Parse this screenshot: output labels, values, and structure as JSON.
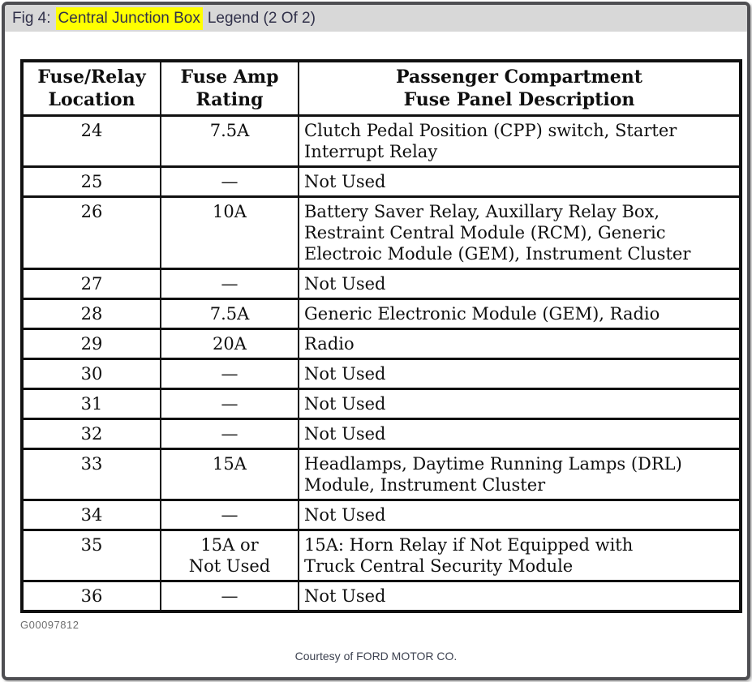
{
  "header": {
    "prefix": "Fig 4:",
    "highlight": "Central Junction Box",
    "suffix": "Legend (2 Of 2)"
  },
  "table": {
    "columns": [
      "Fuse/Relay\nLocation",
      "Fuse Amp\nRating",
      "Passenger Compartment\nFuse Panel Description"
    ],
    "rows": [
      {
        "location": "24",
        "rating": "7.5A",
        "description": "Clutch Pedal Position (CPP) switch, Starter\nInterrupt Relay"
      },
      {
        "location": "25",
        "rating": "—",
        "description": "Not Used"
      },
      {
        "location": "26",
        "rating": "10A",
        "description": "Battery Saver Relay, Auxillary Relay Box,\nRestraint Central Module (RCM), Generic\nElectroic Module (GEM), Instrument Cluster"
      },
      {
        "location": "27",
        "rating": "—",
        "description": "Not Used"
      },
      {
        "location": "28",
        "rating": "7.5A",
        "description": "Generic Electronic Module (GEM), Radio"
      },
      {
        "location": "29",
        "rating": "20A",
        "description": "Radio"
      },
      {
        "location": "30",
        "rating": "—",
        "description": "Not Used"
      },
      {
        "location": "31",
        "rating": "—",
        "description": "Not Used"
      },
      {
        "location": "32",
        "rating": "—",
        "description": "Not Used"
      },
      {
        "location": "33",
        "rating": "15A",
        "description": "Headlamps, Daytime Running Lamps (DRL)\nModule, Instrument Cluster"
      },
      {
        "location": "34",
        "rating": "—",
        "description": "Not Used"
      },
      {
        "location": "35",
        "rating": "15A or\nNot Used",
        "description": "15A: Horn Relay if Not Equipped with\nTruck Central Security Module"
      },
      {
        "location": "36",
        "rating": "—",
        "description": "Not Used"
      }
    ]
  },
  "footer": {
    "graphic_id": "G00097812",
    "courtesy": "Courtesy of FORD MOTOR CO."
  },
  "colors": {
    "highlight": "#ffff00",
    "titlebar_bg": "#d8d8d8",
    "frame_border": "#4e4e52",
    "table_ink": "#101010"
  }
}
